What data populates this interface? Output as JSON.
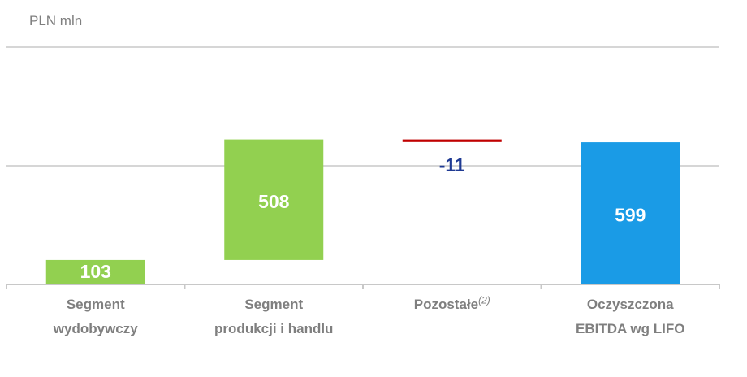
{
  "chart_data": {
    "type": "waterfall",
    "title": "PLN mln",
    "categories": [
      "Segment wydobywczy",
      "Segment produkcji i handlu",
      "Pozostałe",
      "Oczyszczona EBITDA wg LIFO"
    ],
    "footnote_marks": [
      null,
      null,
      "(2)",
      null
    ],
    "values": [
      103,
      508,
      -11,
      599
    ],
    "measure": [
      "relative",
      "relative",
      "relative",
      "total"
    ],
    "colors": [
      "#92d050",
      "#92d050",
      "#c00000",
      "#1a9be6"
    ],
    "label_colors": [
      "#ffffff",
      "#ffffff",
      "#1f3a93",
      "#ffffff"
    ],
    "ylim": [
      0,
      1000
    ],
    "yticks": [
      500,
      1000
    ],
    "tick_labels": false,
    "grid": true
  }
}
